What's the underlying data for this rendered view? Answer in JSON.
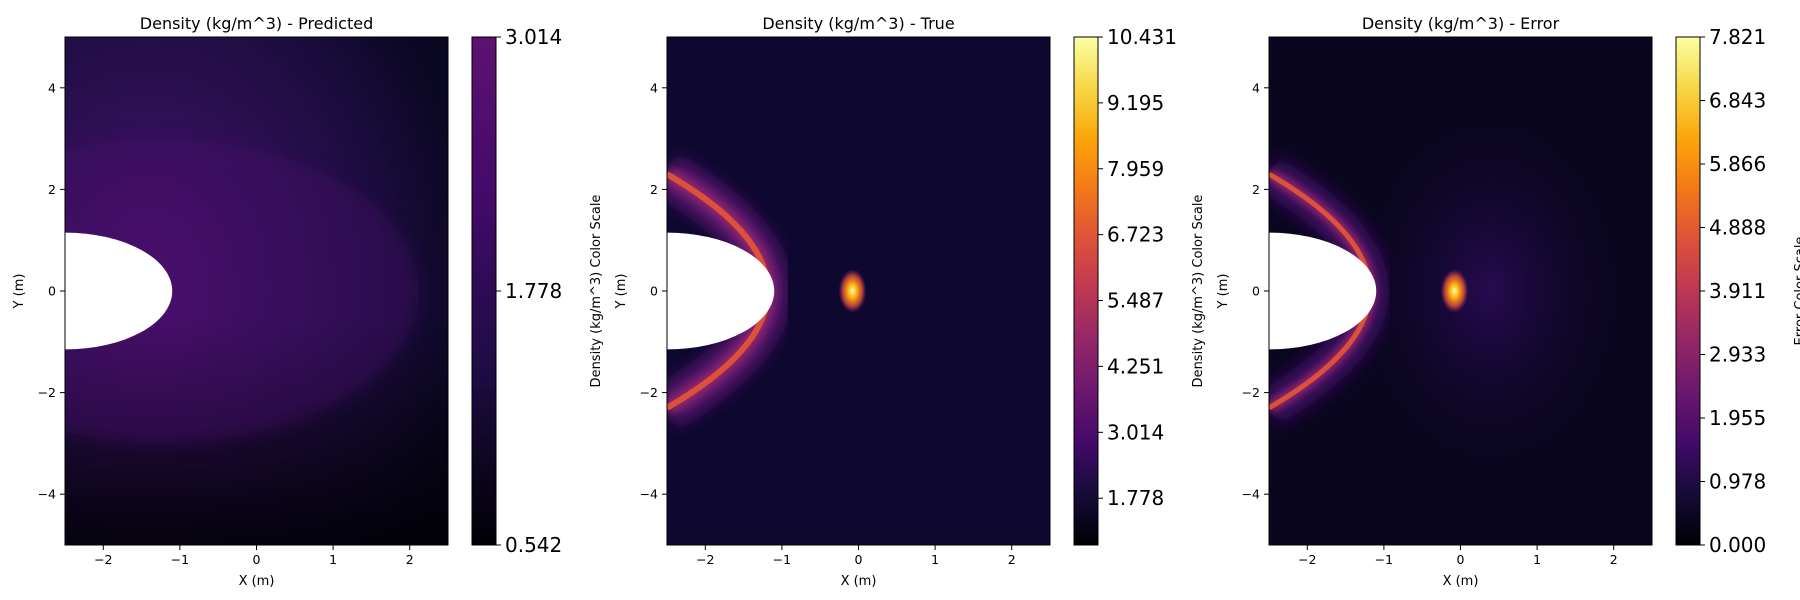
{
  "figure": {
    "background": "#ffffff",
    "colormap": "inferno"
  },
  "chart_data": [
    {
      "type": "heatmap",
      "field": "predicted",
      "title": "Density (kg/m^3) - Predicted",
      "xlabel": "X (m)",
      "ylabel": "Y (m)",
      "xlim": [
        -2.5,
        2.5
      ],
      "ylim": [
        -5,
        5
      ],
      "xticks": [
        -2,
        -1,
        0,
        1,
        2
      ],
      "yticks": [
        -4,
        -2,
        0,
        2,
        4
      ],
      "xtick_labels": [
        "−2",
        "−1",
        "0",
        "1",
        "2"
      ],
      "ytick_labels": [
        "−4",
        "−2",
        "0",
        "2",
        "4"
      ],
      "obstacle": {
        "shape": "half-ellipse",
        "center": [
          -2.5,
          0
        ],
        "semi_axis_x": 1.4,
        "semi_axis_y": 1.15
      },
      "colorbar": {
        "label": "Density (kg/m^3) Color Scale",
        "range": [
          0.542,
          3.014
        ],
        "ticks": [
          0.542,
          1.778,
          3.014
        ],
        "tick_labels": [
          "0.542",
          "1.778",
          "3.014"
        ]
      }
    },
    {
      "type": "heatmap",
      "field": "true",
      "title": "Density (kg/m^3) - True",
      "xlabel": "X (m)",
      "ylabel": "Y (m)",
      "xlim": [
        -2.5,
        2.5
      ],
      "ylim": [
        -5,
        5
      ],
      "xticks": [
        -2,
        -1,
        0,
        1,
        2
      ],
      "yticks": [
        -4,
        -2,
        0,
        2,
        4
      ],
      "xtick_labels": [
        "−2",
        "−1",
        "0",
        "1",
        "2"
      ],
      "ytick_labels": [
        "−4",
        "−2",
        "0",
        "2",
        "4"
      ],
      "obstacle": {
        "shape": "half-ellipse",
        "center": [
          -2.5,
          0
        ],
        "semi_axis_x": 1.4,
        "semi_axis_y": 1.15
      },
      "colorbar": {
        "label": "Density (kg/m^3) Color Scale",
        "range": [
          0.9,
          10.431
        ],
        "ticks": [
          1.778,
          3.014,
          4.251,
          5.487,
          6.723,
          7.959,
          9.195,
          10.431
        ],
        "tick_labels": [
          "1.778",
          "3.014",
          "4.251",
          "5.487",
          "6.723",
          "7.959",
          "9.195",
          "10.431"
        ]
      }
    },
    {
      "type": "heatmap",
      "field": "error",
      "title": "Density (kg/m^3) - Error",
      "xlabel": "X (m)",
      "ylabel": "Y (m)",
      "xlim": [
        -2.5,
        2.5
      ],
      "ylim": [
        -5,
        5
      ],
      "xticks": [
        -2,
        -1,
        0,
        1,
        2
      ],
      "yticks": [
        -4,
        -2,
        0,
        2,
        4
      ],
      "xtick_labels": [
        "−2",
        "−1",
        "0",
        "1",
        "2"
      ],
      "ytick_labels": [
        "−4",
        "−2",
        "0",
        "2",
        "4"
      ],
      "obstacle": {
        "shape": "half-ellipse",
        "center": [
          -2.5,
          0
        ],
        "semi_axis_x": 1.4,
        "semi_axis_y": 1.15
      },
      "colorbar": {
        "label": "Error Color Scale",
        "range": [
          0.0,
          7.821
        ],
        "ticks": [
          0.0,
          0.978,
          1.955,
          2.933,
          3.911,
          4.888,
          5.866,
          6.843,
          7.821
        ],
        "tick_labels": [
          "0.000",
          "0.978",
          "1.955",
          "2.933",
          "3.911",
          "4.888",
          "5.866",
          "6.843",
          "7.821"
        ]
      }
    }
  ]
}
